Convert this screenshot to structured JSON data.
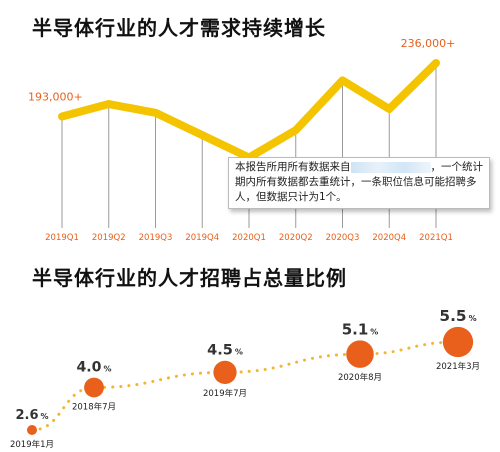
{
  "titles": {
    "chart1": "半导体行业的人才需求持续增长",
    "chart2": "半导体行业的人才招聘占总量比例"
  },
  "note": {
    "part1": "本报告所用所有数据来自",
    "part2": "，一个统计期内所有数据都去重统计，一条职位信息可能招聘多人，但数据只计为1个。"
  },
  "colors": {
    "line": "#f5c400",
    "accent": "#e8601c",
    "dots": "#f2b632",
    "guide": "#9a9a9a"
  },
  "chart_data": [
    {
      "type": "line",
      "title": "半导体行业的人才需求持续增长",
      "categories": [
        "2019Q1",
        "2019Q2",
        "2019Q3",
        "2019Q4",
        "2020Q1",
        "2020Q2",
        "2020Q3",
        "2020Q4",
        "2021Q1"
      ],
      "values": [
        193000,
        203000,
        196000,
        178000,
        160000,
        182000,
        222000,
        199000,
        236000
      ],
      "data_labels": [
        {
          "index": 0,
          "text": "193,000+"
        },
        {
          "index": 8,
          "text": "236,000+"
        }
      ],
      "ylim": [
        150000,
        240000
      ]
    },
    {
      "type": "scatter",
      "title": "半导体行业的人才招聘占总量比例",
      "points": [
        {
          "label": "2019年1月",
          "value": 2.6,
          "num": "2.6",
          "unit": "%"
        },
        {
          "label": "2018年7月",
          "value": 4.0,
          "num": "4.0",
          "unit": "%"
        },
        {
          "label": "2019年7月",
          "value": 4.5,
          "num": "4.5",
          "unit": "%"
        },
        {
          "label": "2020年8月",
          "value": 5.1,
          "num": "5.1",
          "unit": "%"
        },
        {
          "label": "2021年3月",
          "value": 5.5,
          "num": "5.5",
          "unit": "%"
        }
      ]
    }
  ]
}
